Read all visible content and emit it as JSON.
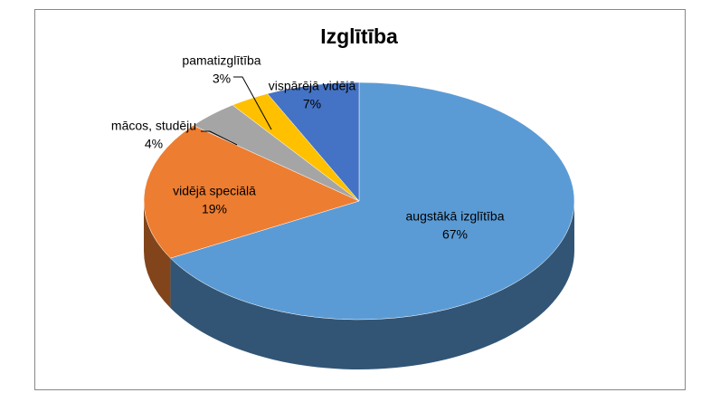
{
  "chart_data": {
    "type": "pie",
    "title": "Izglītība",
    "categories": [
      "augstākā izglītība",
      "vidējā speciālā",
      "mācos, studēju",
      "pamatizglītība",
      "vispārējā vidējā"
    ],
    "values": [
      67,
      19,
      4,
      3,
      7
    ],
    "value_labels": [
      "67%",
      "19%",
      "4%",
      "3%",
      "7%"
    ],
    "colors": [
      "#5b9bd5",
      "#ed7d31",
      "#a5a5a5",
      "#ffc000",
      "#4472c4"
    ]
  }
}
